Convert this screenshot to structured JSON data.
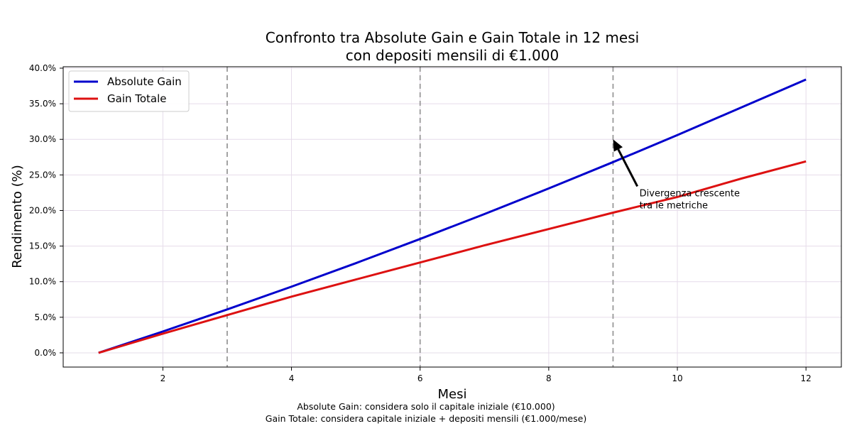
{
  "chart_data": {
    "type": "line",
    "title": "Confronto tra Absolute Gain e Gain Totale in 12 mesi\ncon depositi mensili di €1.000",
    "xlabel": "Mesi",
    "ylabel": "Rendimento (%)",
    "xlim": [
      0.45,
      12.55
    ],
    "ylim": [
      -2.0,
      40.2
    ],
    "xticks": [
      2,
      4,
      6,
      8,
      10,
      12
    ],
    "yticks": [
      0,
      5,
      10,
      15,
      20,
      25,
      30,
      35,
      40
    ],
    "ytick_format": "{v}%",
    "x": [
      1,
      2,
      3,
      4,
      5,
      6,
      7,
      8,
      9,
      10,
      11,
      12
    ],
    "series": [
      {
        "name": "Absolute Gain",
        "color": "#0000cc",
        "values": [
          0.0,
          3.0,
          6.1,
          9.3,
          12.6,
          16.0,
          19.5,
          23.1,
          26.8,
          30.6,
          34.5,
          38.4
        ]
      },
      {
        "name": "Gain Totale",
        "color": "#dd1111",
        "values": [
          0.0,
          2.7,
          5.3,
          7.9,
          10.3,
          12.7,
          15.1,
          17.4,
          19.7,
          21.9,
          24.5,
          26.9
        ]
      }
    ],
    "vlines": [
      3,
      6,
      9
    ],
    "vline_color": "#999999",
    "grid": true,
    "legend_position": "upper-left",
    "annotation": {
      "text_lines": [
        "Divergenza crescente",
        "tra le metriche"
      ],
      "arrow_tip": [
        9,
        30
      ],
      "text_at": [
        9.4,
        23.5
      ]
    },
    "footnotes": [
      "Absolute Gain: considera solo il capitale iniziale (€10.000)",
      "Gain Totale: considera capitale iniziale + depositi mensili (€1.000/mese)"
    ]
  }
}
